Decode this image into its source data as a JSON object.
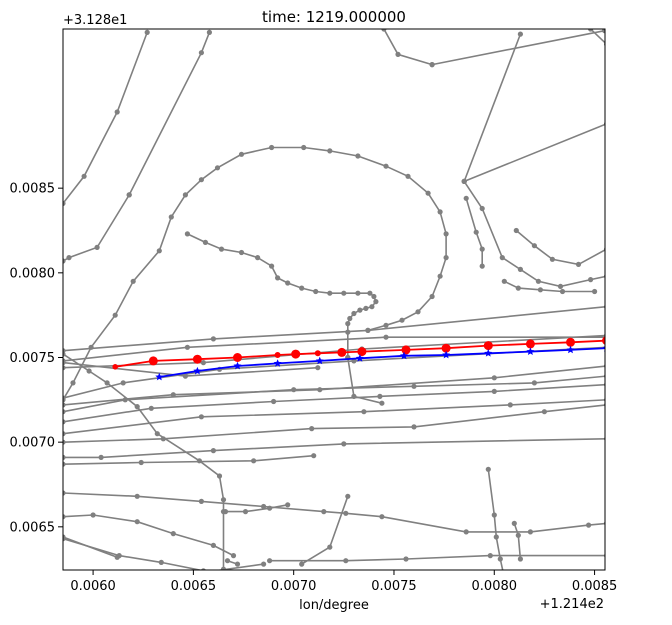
{
  "chart_data": {
    "type": "line",
    "title": "time: 1219.000000",
    "xlabel": "lon/degree",
    "ylabel": "",
    "x_offset_label": "+1.214e2",
    "y_offset_label": "+3.128e1",
    "xlim": [
      0.00585,
      0.008552
    ],
    "ylim": [
      0.006245,
      0.00944
    ],
    "x_ticks": [
      {
        "value": 0.006,
        "label": "0.0060"
      },
      {
        "value": 0.0065,
        "label": "0.0065"
      },
      {
        "value": 0.007,
        "label": "0.0070"
      },
      {
        "value": 0.0075,
        "label": "0.0075"
      },
      {
        "value": 0.008,
        "label": "0.0080"
      },
      {
        "value": 0.0085,
        "label": "0.0085"
      }
    ],
    "y_ticks": [
      {
        "value": 0.0065,
        "label": "0.0065"
      },
      {
        "value": 0.007,
        "label": "0.0070"
      },
      {
        "value": 0.0075,
        "label": "0.0075"
      },
      {
        "value": 0.008,
        "label": "0.0080"
      },
      {
        "value": 0.0085,
        "label": "0.0085"
      }
    ],
    "road_color": "#808080",
    "roads": [
      [
        [
          0.00585,
          0.00841
        ],
        [
          0.005955,
          0.00857
        ],
        [
          0.00612,
          0.00895
        ],
        [
          0.00627,
          0.00942
        ]
      ],
      [
        [
          0.00585,
          0.00807
        ],
        [
          0.00588,
          0.00809
        ],
        [
          0.00602,
          0.00815
        ],
        [
          0.00618,
          0.00846
        ]
      ],
      [
        [
          0.00618,
          0.00846
        ],
        [
          0.00654,
          0.0093
        ],
        [
          0.00658,
          0.00942
        ]
      ],
      [
        [
          0.00585,
          0.00725
        ],
        [
          0.0059,
          0.00735
        ],
        [
          0.00599,
          0.00756
        ],
        [
          0.00611,
          0.00775
        ],
        [
          0.0062,
          0.00795
        ],
        [
          0.00633,
          0.00813
        ],
        [
          0.00639,
          0.00833
        ],
        [
          0.00646,
          0.00846
        ],
        [
          0.00654,
          0.00855
        ],
        [
          0.00662,
          0.00862
        ],
        [
          0.00674,
          0.0087
        ],
        [
          0.00689,
          0.00874
        ],
        [
          0.00705,
          0.00874
        ],
        [
          0.00718,
          0.00872
        ],
        [
          0.00732,
          0.00869
        ],
        [
          0.00746,
          0.00863
        ],
        [
          0.00757,
          0.00857
        ],
        [
          0.00767,
          0.00847
        ],
        [
          0.00773,
          0.00836
        ],
        [
          0.00776,
          0.00823
        ],
        [
          0.00776,
          0.00809
        ],
        [
          0.00773,
          0.00798
        ],
        [
          0.00769,
          0.00786
        ],
        [
          0.00762,
          0.00777
        ],
        [
          0.00754,
          0.00772
        ],
        [
          0.00746,
          0.00769
        ],
        [
          0.00737,
          0.00766
        ]
      ],
      [
        [
          0.00647,
          0.00823
        ],
        [
          0.00656,
          0.00818
        ],
        [
          0.00664,
          0.00814
        ],
        [
          0.00674,
          0.00812
        ],
        [
          0.00682,
          0.00809
        ],
        [
          0.00689,
          0.00804
        ],
        [
          0.00692,
          0.00797
        ],
        [
          0.00697,
          0.00794
        ],
        [
          0.00704,
          0.00791
        ],
        [
          0.00711,
          0.00789
        ],
        [
          0.00718,
          0.00788
        ],
        [
          0.00725,
          0.00788
        ],
        [
          0.00732,
          0.00788
        ],
        [
          0.00738,
          0.00788
        ],
        [
          0.0074,
          0.00786
        ],
        [
          0.00741,
          0.00783
        ],
        [
          0.00739,
          0.0078
        ],
        [
          0.00736,
          0.00779
        ],
        [
          0.00733,
          0.00778
        ],
        [
          0.0073,
          0.00776
        ],
        [
          0.00728,
          0.00773
        ],
        [
          0.00727,
          0.0077
        ],
        [
          0.00727,
          0.00765
        ],
        [
          0.00727,
          0.0075
        ]
      ],
      [
        [
          0.00727,
          0.0075
        ],
        [
          0.0073,
          0.00727
        ],
        [
          0.00744,
          0.00723
        ]
      ],
      [
        [
          0.00585,
          0.00754
        ],
        [
          0.0066,
          0.00761
        ],
        [
          0.00737,
          0.00766
        ],
        [
          0.00856,
          0.0078
        ]
      ],
      [
        [
          0.00585,
          0.00748
        ],
        [
          0.00647,
          0.00756
        ],
        [
          0.00746,
          0.00762
        ],
        [
          0.00856,
          0.00762
        ]
      ],
      [
        [
          0.00585,
          0.00744
        ],
        [
          0.00655,
          0.00747
        ],
        [
          0.00734,
          0.00755
        ],
        [
          0.00856,
          0.00763
        ]
      ],
      [
        [
          0.00585,
          0.00726
        ],
        [
          0.00615,
          0.00735
        ],
        [
          0.00663,
          0.00743
        ],
        [
          0.0073,
          0.00748
        ],
        [
          0.00856,
          0.00756
        ]
      ],
      [
        [
          0.00585,
          0.00722
        ],
        [
          0.0064,
          0.00728
        ],
        [
          0.00713,
          0.00731
        ],
        [
          0.008,
          0.00738
        ],
        [
          0.00856,
          0.00745
        ]
      ],
      [
        [
          0.00585,
          0.00718
        ],
        [
          0.00616,
          0.00725
        ],
        [
          0.007,
          0.00731
        ],
        [
          0.0076,
          0.00733
        ],
        [
          0.0082,
          0.00735
        ],
        [
          0.00856,
          0.00739
        ]
      ],
      [
        [
          0.00585,
          0.00712
        ],
        [
          0.00629,
          0.0072
        ],
        [
          0.0069,
          0.00724
        ],
        [
          0.00743,
          0.00727
        ],
        [
          0.008,
          0.0073
        ],
        [
          0.00856,
          0.00734
        ]
      ],
      [
        [
          0.00585,
          0.00705
        ],
        [
          0.00654,
          0.00715
        ],
        [
          0.00735,
          0.00718
        ],
        [
          0.00808,
          0.00722
        ],
        [
          0.00856,
          0.00725
        ]
      ],
      [
        [
          0.00585,
          0.007
        ],
        [
          0.00635,
          0.00702
        ],
        [
          0.00709,
          0.00708
        ],
        [
          0.0076,
          0.00709
        ],
        [
          0.00825,
          0.00718
        ],
        [
          0.00856,
          0.00722
        ]
      ],
      [
        [
          0.00585,
          0.00691
        ],
        [
          0.00604,
          0.00691
        ],
        [
          0.0066,
          0.00695
        ],
        [
          0.00725,
          0.00699
        ],
        [
          0.00856,
          0.00702
        ]
      ],
      [
        [
          0.00585,
          0.00687
        ],
        [
          0.00624,
          0.00688
        ],
        [
          0.0068,
          0.00689
        ],
        [
          0.0071,
          0.00692
        ]
      ],
      [
        [
          0.00585,
          0.0067
        ],
        [
          0.00622,
          0.00668
        ],
        [
          0.00654,
          0.00665
        ],
        [
          0.00685,
          0.00662
        ],
        [
          0.00715,
          0.00659
        ],
        [
          0.00726,
          0.00658
        ],
        [
          0.00744,
          0.00656
        ],
        [
          0.00786,
          0.00647
        ],
        [
          0.00818,
          0.00647
        ],
        [
          0.00847,
          0.00651
        ],
        [
          0.00856,
          0.00652
        ]
      ],
      [
        [
          0.00585,
          0.00656
        ],
        [
          0.006,
          0.00657
        ],
        [
          0.00622,
          0.00653
        ],
        [
          0.0064,
          0.00646
        ],
        [
          0.0066,
          0.00639
        ],
        [
          0.0067,
          0.00633
        ]
      ],
      [
        [
          0.00585,
          0.00643
        ],
        [
          0.00613,
          0.00633
        ],
        [
          0.00634,
          0.00629
        ],
        [
          0.00655,
          0.00624
        ],
        [
          0.00675,
          0.00621
        ],
        [
          0.0069,
          0.00618
        ],
        [
          0.00708,
          0.00616
        ],
        [
          0.00722,
          0.00611
        ],
        [
          0.00737,
          0.00605
        ],
        [
          0.00755,
          0.006
        ],
        [
          0.00766,
          0.00598
        ]
      ],
      [
        [
          0.00585,
          0.00644
        ],
        [
          0.00612,
          0.00632
        ]
      ],
      [
        [
          0.00585,
          0.00613
        ],
        [
          0.00629,
          0.00616
        ]
      ],
      [
        [
          0.00585,
          0.00752
        ],
        [
          0.00598,
          0.00742
        ],
        [
          0.00607,
          0.00735
        ],
        [
          0.00622,
          0.00721
        ],
        [
          0.00632,
          0.00705
        ],
        [
          0.00653,
          0.00689
        ],
        [
          0.00663,
          0.0068
        ],
        [
          0.00665,
          0.00666
        ],
        [
          0.00665,
          0.00659
        ],
        [
          0.00665,
          0.00625
        ]
      ],
      [
        [
          0.00666,
          0.00659
        ],
        [
          0.00676,
          0.00659
        ],
        [
          0.00688,
          0.00661
        ],
        [
          0.00697,
          0.00663
        ]
      ],
      [
        [
          0.00667,
          0.0063
        ],
        [
          0.00672,
          0.00628
        ]
      ],
      [
        [
          0.00685,
          0.00628
        ],
        [
          0.00655,
          0.00623
        ]
      ],
      [
        [
          0.00688,
          0.0063
        ],
        [
          0.00726,
          0.0063
        ],
        [
          0.00756,
          0.00631
        ],
        [
          0.00798,
          0.00633
        ],
        [
          0.00856,
          0.00633
        ]
      ],
      [
        [
          0.00727,
          0.00668
        ],
        [
          0.00718,
          0.00638
        ],
        [
          0.00704,
          0.00628
        ]
      ],
      [
        [
          0.00797,
          0.00684
        ],
        [
          0.008,
          0.00657
        ],
        [
          0.00801,
          0.00644
        ],
        [
          0.00803,
          0.00631
        ],
        [
          0.00805,
          0.0062
        ]
      ],
      [
        [
          0.0081,
          0.00652
        ],
        [
          0.00812,
          0.00645
        ],
        [
          0.00813,
          0.00631
        ]
      ],
      [
        [
          0.00745,
          0.00944
        ],
        [
          0.00752,
          0.00929
        ],
        [
          0.00769,
          0.00923
        ]
      ],
      [
        [
          0.00769,
          0.00923
        ],
        [
          0.00855,
          0.00943
        ]
      ],
      [
        [
          0.00848,
          0.00944
        ],
        [
          0.00856,
          0.00935
        ]
      ],
      [
        [
          0.00785,
          0.00854
        ],
        [
          0.00813,
          0.00941
        ]
      ],
      [
        [
          0.00785,
          0.00854
        ],
        [
          0.00856,
          0.00888
        ]
      ],
      [
        [
          0.00785,
          0.00854
        ],
        [
          0.00794,
          0.00838
        ],
        [
          0.00804,
          0.00809
        ],
        [
          0.00813,
          0.00802
        ],
        [
          0.00822,
          0.00795
        ],
        [
          0.00833,
          0.00792
        ],
        [
          0.00848,
          0.00796
        ],
        [
          0.00856,
          0.00798
        ]
      ],
      [
        [
          0.00811,
          0.00825
        ],
        [
          0.0082,
          0.00816
        ],
        [
          0.00829,
          0.00808
        ],
        [
          0.00842,
          0.00805
        ],
        [
          0.00856,
          0.00814
        ]
      ],
      [
        [
          0.00786,
          0.00844
        ],
        [
          0.00791,
          0.00824
        ],
        [
          0.00794,
          0.00814
        ],
        [
          0.00794,
          0.00804
        ]
      ],
      [
        [
          0.00805,
          0.00795
        ],
        [
          0.00812,
          0.00791
        ],
        [
          0.00823,
          0.0079
        ],
        [
          0.00834,
          0.00789
        ],
        [
          0.0085,
          0.00789
        ]
      ],
      [
        [
          0.00585,
          0.00747
        ],
        [
          0.00646,
          0.00739
        ],
        [
          0.00712,
          0.00744
        ]
      ]
    ],
    "series": [
      {
        "color": "#ff0000",
        "marker": "circle",
        "x": [
          0.00611,
          0.0063,
          0.00652,
          0.00672,
          0.00692,
          0.00701,
          0.00712,
          0.00724,
          0.00734,
          0.00756,
          0.00776,
          0.00797,
          0.00818,
          0.00838,
          0.00856
        ],
        "y": [
          0.007445,
          0.00748,
          0.00749,
          0.0075,
          0.007515,
          0.00752,
          0.007525,
          0.00753,
          0.007535,
          0.007545,
          0.007555,
          0.00757,
          0.00758,
          0.00759,
          0.0076
        ]
      },
      {
        "color": "#0000ff",
        "marker": "star",
        "x": [
          0.00633,
          0.00652,
          0.00672,
          0.00692,
          0.00713,
          0.00733,
          0.00755,
          0.00776,
          0.00797,
          0.00818,
          0.00838,
          0.00856
        ],
        "y": [
          0.007385,
          0.00742,
          0.00745,
          0.007465,
          0.00748,
          0.007495,
          0.00751,
          0.007515,
          0.007525,
          0.007535,
          0.007545,
          0.007555
        ]
      }
    ]
  }
}
